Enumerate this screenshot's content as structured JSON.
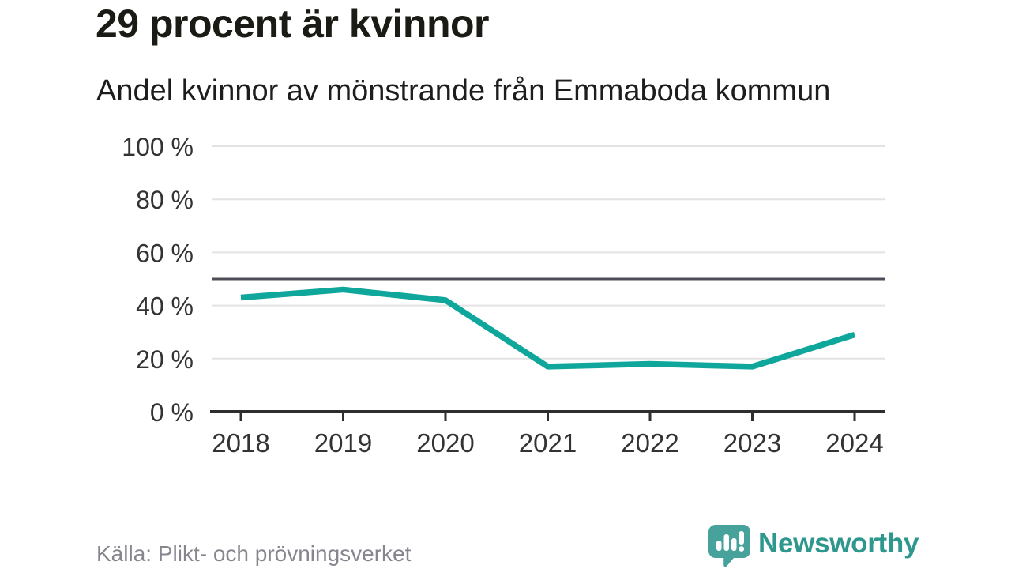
{
  "header": {
    "title": "29 procent är kvinnor",
    "subtitle": "Andel kvinnor av mönstrande från Emmaboda kommun"
  },
  "footer": {
    "source": "Källa: Plikt- och prövningsverket",
    "brand": "Newsworthy"
  },
  "colors": {
    "line": "#0fa69b",
    "reference_line": "#4d4d57",
    "grid": "#e3e3e3",
    "axis": "#2e2e2e",
    "tick_text": "#333333",
    "brand_icon": "#46a29a"
  },
  "chart_data": {
    "type": "line",
    "title": "29 procent är kvinnor",
    "subtitle": "Andel kvinnor av mönstrande från Emmaboda kommun",
    "x": [
      2018,
      2019,
      2020,
      2021,
      2022,
      2023,
      2024
    ],
    "series": [
      {
        "name": "Andel kvinnor av mönstrande",
        "color": "#0fa69b",
        "values": [
          43,
          46,
          42,
          17,
          18,
          17,
          29
        ]
      }
    ],
    "reference_line": 50,
    "ylim": [
      0,
      100
    ],
    "yticks": [
      0,
      20,
      40,
      60,
      80,
      100
    ],
    "ytick_suffix": " %",
    "grid": true,
    "legend": "none",
    "source": "Källa: Plikt- och prövningsverket"
  }
}
